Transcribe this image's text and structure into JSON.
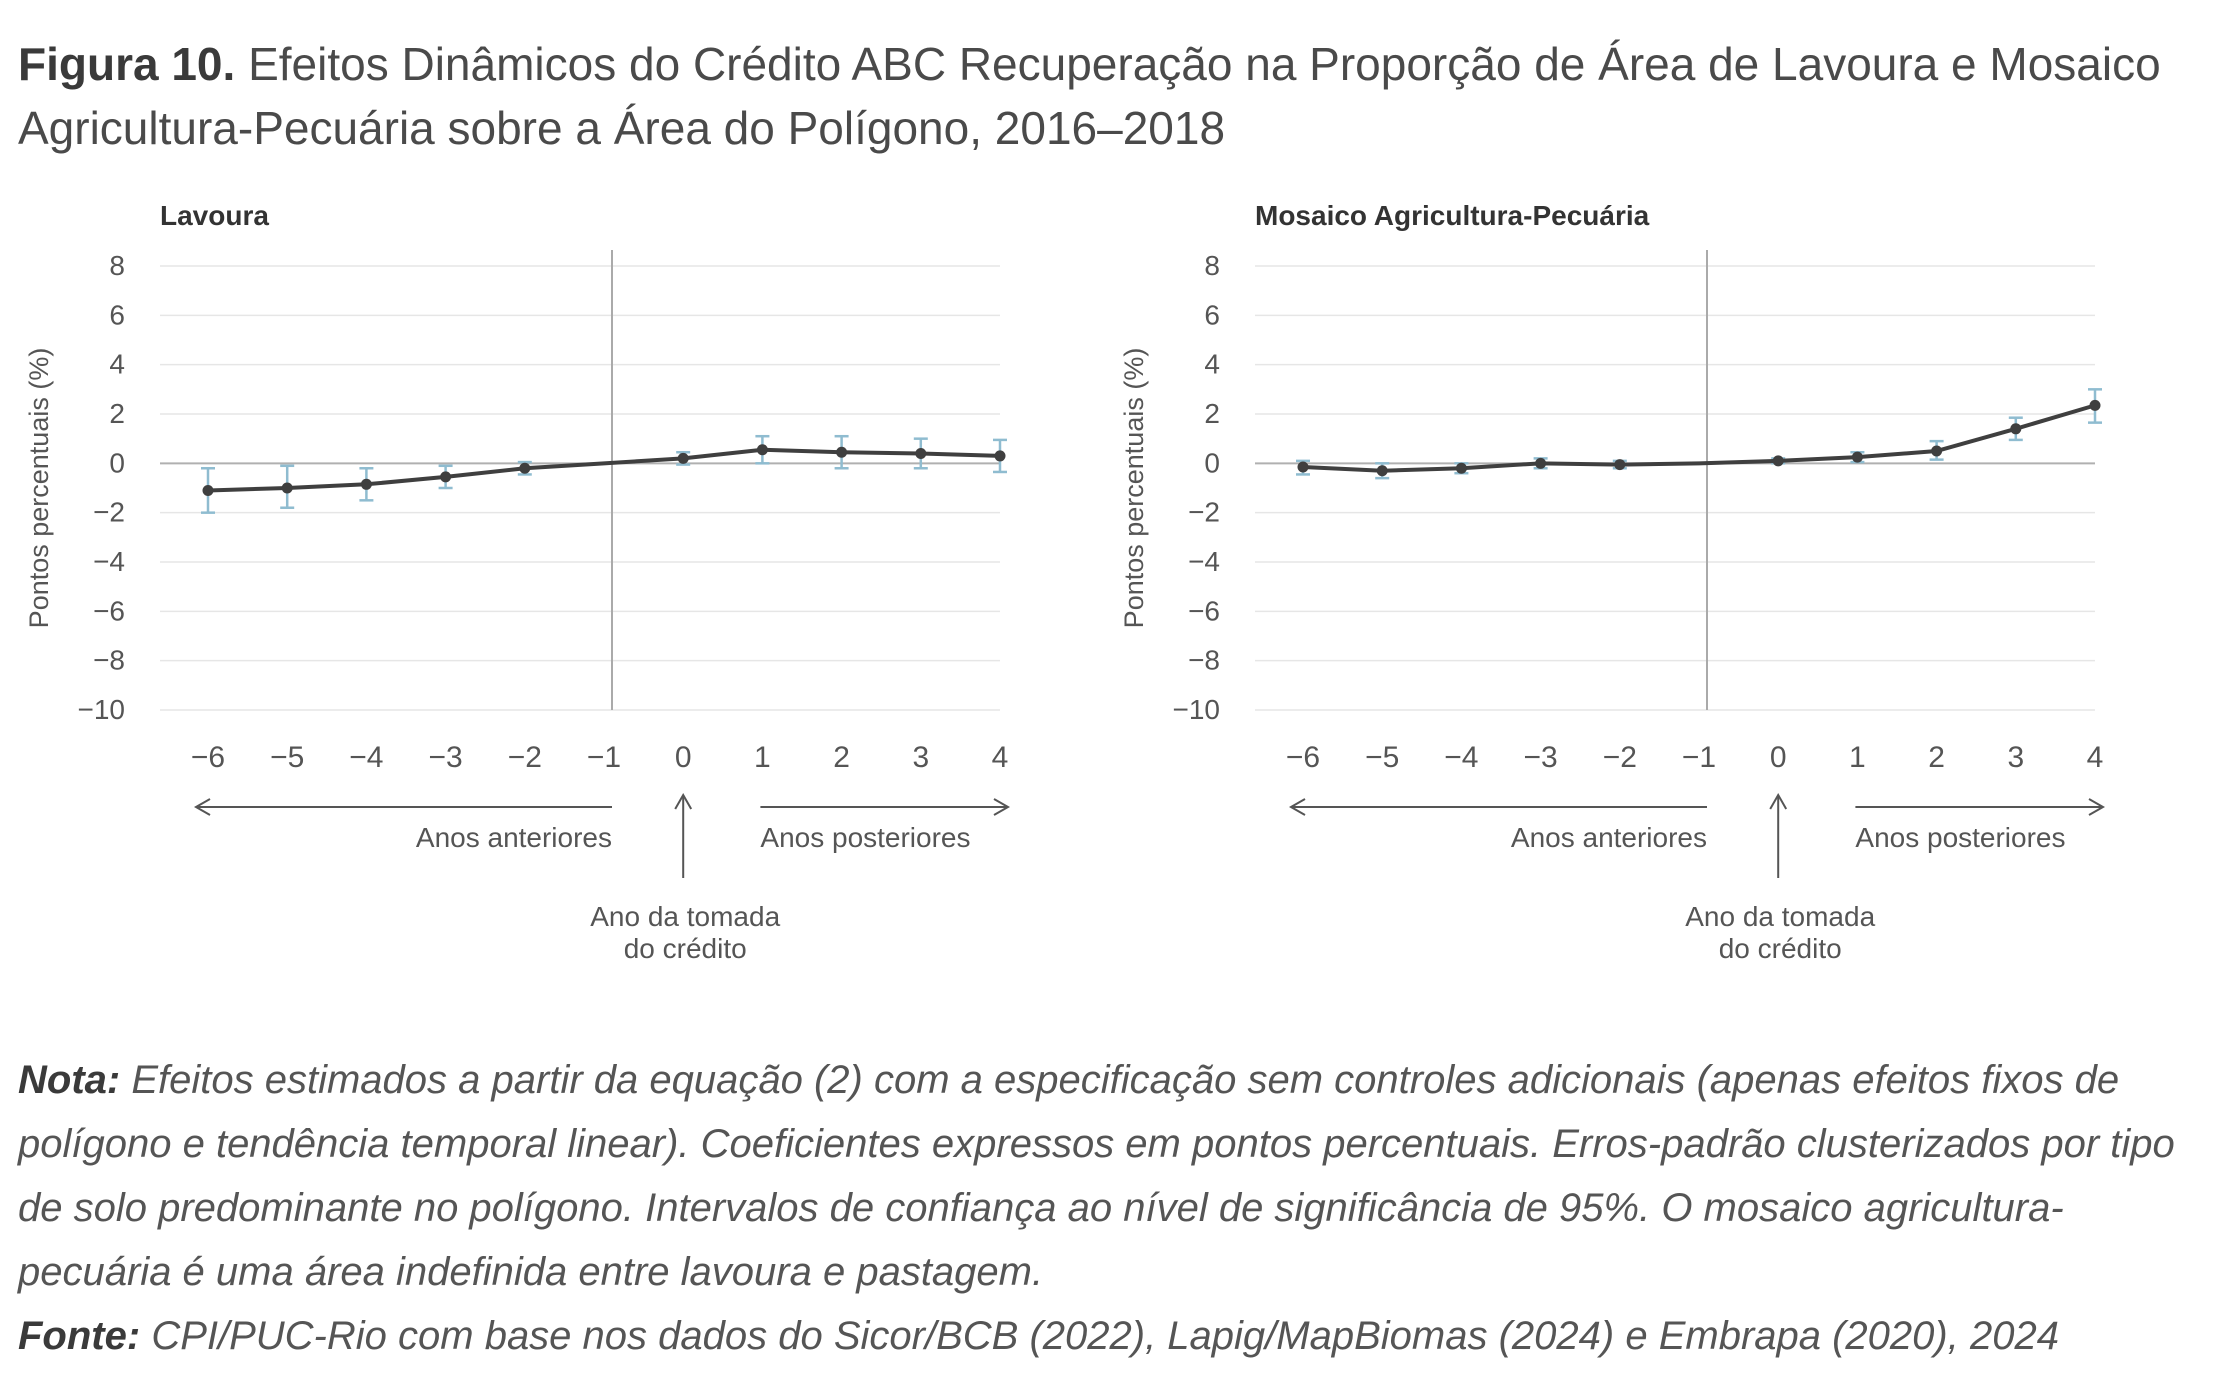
{
  "figure": {
    "label": "Figura 10.",
    "title": "Efeitos Dinâmicos do Crédito ABC Recuperação na Proporção de Área de Lavoura e Mosaico Agricultura-Pecuária sobre a Área do Polígono, 2016–2018"
  },
  "colors": {
    "line": "#3f3f3f",
    "errorbar": "#8fbcd0",
    "grid": "#e6e6e6",
    "axis": "#aaaaaa"
  },
  "chart_data": [
    {
      "type": "line",
      "title": "Lavoura",
      "ylabel": "Pontos percentuais (%)",
      "ylim": [
        -10,
        8
      ],
      "yticks": [
        8,
        6,
        4,
        2,
        0,
        -2,
        -4,
        -6,
        -8,
        -10
      ],
      "ytick_labels": [
        "8",
        "6",
        "4",
        "2",
        "0",
        "−2",
        "−4",
        "−6",
        "−8",
        "−10"
      ],
      "x": [
        -6,
        -5,
        -4,
        -3,
        -2,
        -1,
        0,
        1,
        2,
        3,
        4
      ],
      "xtick_labels": [
        "−6",
        "−5",
        "−4",
        "−3",
        "−2",
        "−1",
        "0",
        "1",
        "2",
        "3",
        "4"
      ],
      "values": [
        -1.1,
        -1.0,
        -0.85,
        -0.55,
        -0.2,
        0.0,
        0.2,
        0.55,
        0.45,
        0.4,
        0.3
      ],
      "ci_low": [
        -2.0,
        -1.8,
        -1.5,
        -1.0,
        -0.45,
        null,
        -0.05,
        0.0,
        -0.2,
        -0.2,
        -0.35
      ],
      "ci_high": [
        -0.2,
        -0.1,
        -0.2,
        -0.1,
        0.05,
        null,
        0.45,
        1.1,
        1.1,
        1.0,
        0.95
      ],
      "reference_x": -1,
      "annotations": {
        "before": "Anos anteriores",
        "after": "Anos posteriores",
        "event": [
          "Ano da tomada",
          "do crédito"
        ]
      }
    },
    {
      "type": "line",
      "title": "Mosaico Agricultura-Pecuária",
      "ylabel": "Pontos percentuais (%)",
      "ylim": [
        -10,
        8
      ],
      "yticks": [
        8,
        6,
        4,
        2,
        0,
        -2,
        -4,
        -6,
        -8,
        -10
      ],
      "ytick_labels": [
        "8",
        "6",
        "4",
        "2",
        "0",
        "−2",
        "−4",
        "−6",
        "−8",
        "−10"
      ],
      "x": [
        -6,
        -5,
        -4,
        -3,
        -2,
        -1,
        0,
        1,
        2,
        3,
        4
      ],
      "xtick_labels": [
        "−6",
        "−5",
        "−4",
        "−3",
        "−2",
        "−1",
        "0",
        "1",
        "2",
        "3",
        "4"
      ],
      "values": [
        -0.15,
        -0.3,
        -0.2,
        0.0,
        -0.05,
        0.0,
        0.1,
        0.25,
        0.5,
        1.4,
        2.35
      ],
      "ci_low": [
        -0.45,
        -0.6,
        -0.4,
        -0.2,
        -0.2,
        null,
        0.0,
        0.05,
        0.15,
        0.95,
        1.65
      ],
      "ci_high": [
        0.1,
        0.0,
        0.0,
        0.2,
        0.1,
        null,
        0.2,
        0.45,
        0.9,
        1.85,
        3.0
      ],
      "reference_x": -1,
      "annotations": {
        "before": "Anos anteriores",
        "after": "Anos posteriores",
        "event": [
          "Ano da tomada",
          "do crédito"
        ]
      }
    }
  ],
  "note": {
    "label": "Nota:",
    "text": "Efeitos estimados a partir da equação (2) com a especificação sem controles adicionais (apenas efeitos fixos de polígono e tendência temporal linear). Coeficientes expressos em pontos percentuais. Erros-padrão clusterizados por tipo de solo predominante no polígono. Intervalos de confiança ao nível de significância de 95%. O mosaico agricultura-pecuária é uma área indefinida entre lavoura e pastagem."
  },
  "source": {
    "label": "Fonte:",
    "text": "CPI/PUC-Rio com base nos dados do Sicor/BCB (2022), Lapig/MapBiomas (2024) e Embrapa (2020), 2024"
  }
}
